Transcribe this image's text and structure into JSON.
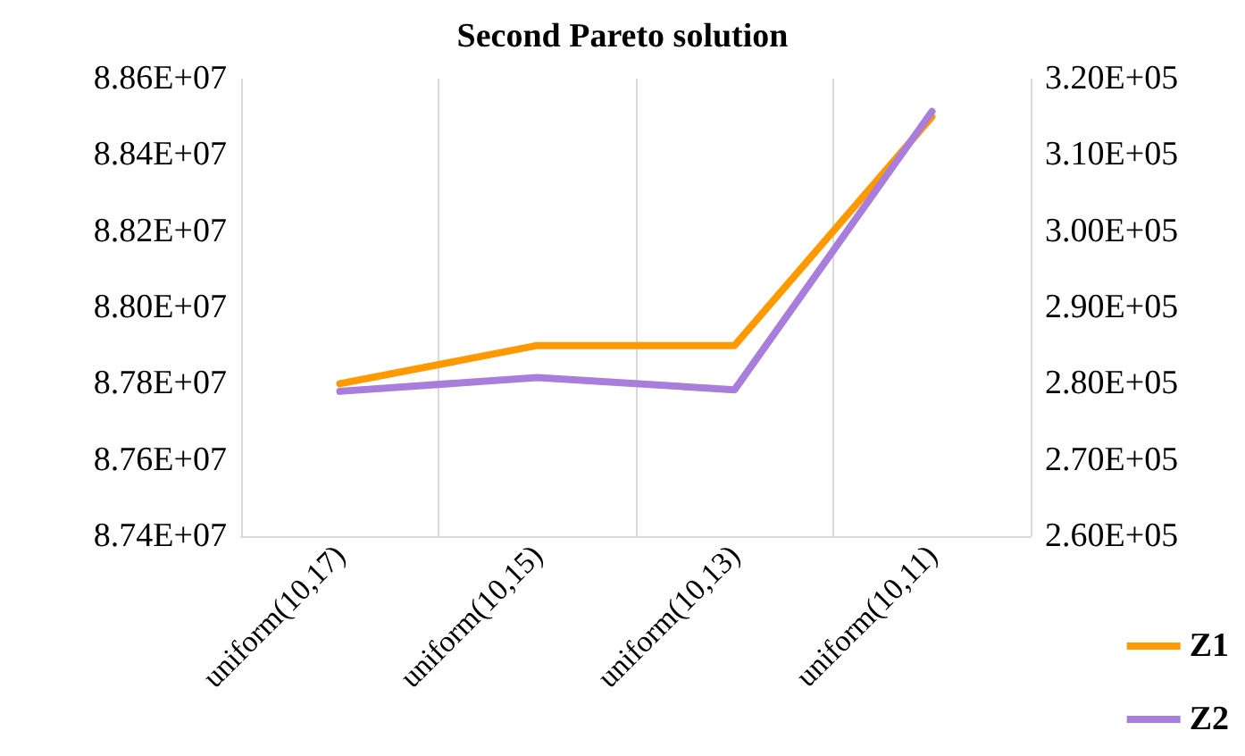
{
  "chart_data": {
    "type": "line",
    "title": "Second Pareto solution",
    "categories": [
      "uniform(10,17)",
      "uniform(10,15)",
      "uniform(10,13)",
      "uniform(10,11)"
    ],
    "series": [
      {
        "name": "Z1",
        "color": "#ff9900",
        "values": [
          87800000,
          87900000,
          87900000,
          88500000
        ]
      },
      {
        "name": "Z2",
        "color": "#a87ddb",
        "axis": "y2",
        "values": [
          279000,
          280800,
          279200,
          315700
        ]
      }
    ],
    "ylim": [
      87400000,
      88600000
    ],
    "yticks": [
      {
        "value": 87400000,
        "label": "8.74E+07"
      },
      {
        "value": 87600000,
        "label": "8.76E+07"
      },
      {
        "value": 87800000,
        "label": "8.78E+07"
      },
      {
        "value": 88000000,
        "label": "8.80E+07"
      },
      {
        "value": 88200000,
        "label": "8.82E+07"
      },
      {
        "value": 88400000,
        "label": "8.84E+07"
      },
      {
        "value": 88600000,
        "label": "8.86E+07"
      }
    ],
    "y2lim": [
      260000,
      320000
    ],
    "y2ticks": [
      {
        "value": 260000,
        "label": "2.60E+05"
      },
      {
        "value": 270000,
        "label": "2.70E+05"
      },
      {
        "value": 280000,
        "label": "2.80E+05"
      },
      {
        "value": 290000,
        "label": "2.90E+05"
      },
      {
        "value": 300000,
        "label": "3.00E+05"
      },
      {
        "value": 310000,
        "label": "3.10E+05"
      },
      {
        "value": 320000,
        "label": "3.20E+05"
      }
    ],
    "grid": "x",
    "legend": "bottom right",
    "marker": "none",
    "line_style": "solid"
  }
}
